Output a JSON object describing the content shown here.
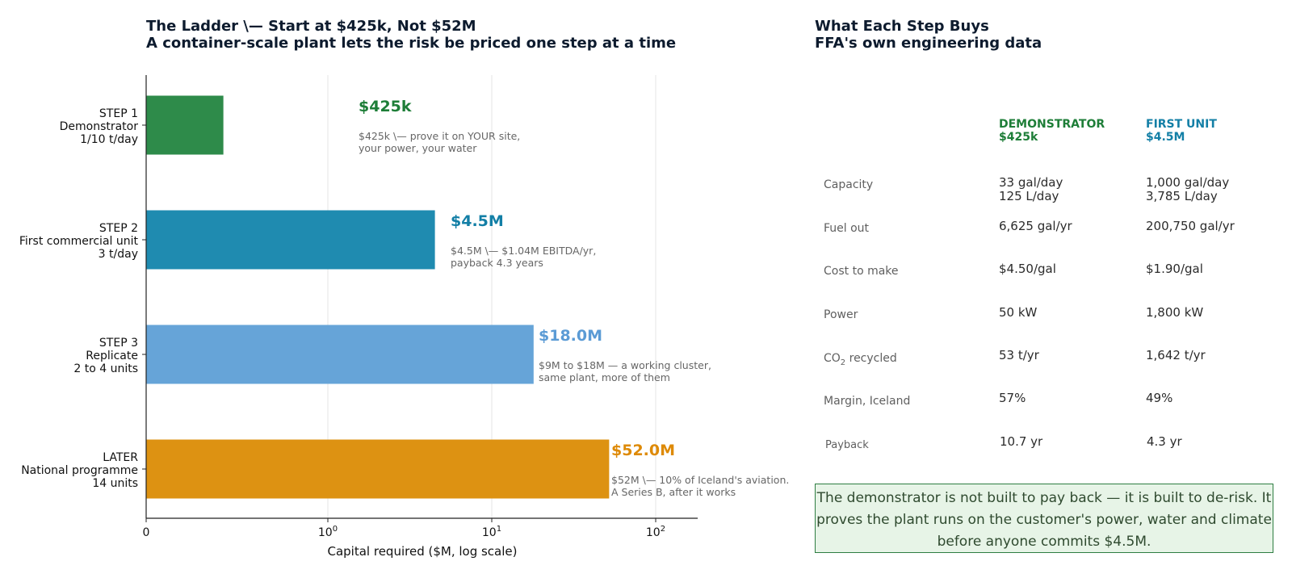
{
  "left_panel": {
    "title_line1": "The Ladder \\— Start at $425k, Not $52M",
    "title_line2": "A container-scale plant lets the risk be priced one step at a time"
  },
  "right_panel": {
    "title_line1": "What Each Step Buys",
    "title_line2": "FFA's own engineering data"
  },
  "chart_data": {
    "type": "bar",
    "orientation": "horizontal",
    "x_scale": "log",
    "xlabel": "Capital required ($M, log scale)",
    "xticks": [
      "0",
      "10^0",
      "10^1",
      "10^2"
    ],
    "grid": "vertical gridlines",
    "categories": [
      [
        "STEP 1",
        "Demonstrator",
        "1/10 t/day"
      ],
      [
        "STEP 2",
        "First commercial unit",
        "3 t/day"
      ],
      [
        "STEP 3",
        "Replicate",
        "2 to 4 units"
      ],
      [
        "LATER",
        "National programme",
        "14 units"
      ]
    ],
    "values": [
      0.425,
      4.5,
      18.0,
      52.0
    ],
    "colors": [
      "#2e8b4a",
      "#1f8bb0",
      "#66a4d8",
      "#dd9212"
    ],
    "value_labels": [
      "$425k",
      "$4.5M",
      "$18.0M",
      "$52.0M"
    ],
    "value_label_colors": [
      "#1e7e38",
      "#137fa6",
      "#5b9bd5",
      "#de8a06"
    ],
    "annotations": [
      [
        "$425k \\— prove it on YOUR site,",
        "your power, your water"
      ],
      [
        "$4.5M \\— $1.04M EBITDA/yr,",
        "payback 4.3 years"
      ],
      [
        "$9M to $18M — a working cluster,",
        "same plant, more of them"
      ],
      [
        "$52M \\— 10% of Iceland's aviation.",
        "A Series B, after it works"
      ]
    ]
  },
  "table": {
    "col1_head": [
      "DEMONSTRATOR",
      "$425k"
    ],
    "col2_head": [
      "FIRST UNIT",
      "$4.5M"
    ],
    "col1_color": "#1e7e38",
    "col2_color": "#137fa6",
    "rows": [
      {
        "label": "Capacity",
        "label_sub": "",
        "label_after": "",
        "a": "33 gal/day\n125 L/day",
        "b": "1,000 gal/day\n3,785 L/day"
      },
      {
        "label": "Fuel out",
        "label_sub": "",
        "label_after": "",
        "a": "6,625 gal/yr",
        "b": "200,750 gal/yr"
      },
      {
        "label": "Cost to make",
        "label_sub": "",
        "label_after": "",
        "a": "$4.50/gal",
        "b": "$1.90/gal"
      },
      {
        "label": "Power",
        "label_sub": "",
        "label_after": "",
        "a": "50 kW",
        "b": "1,800 kW"
      },
      {
        "label": "CO",
        "label_sub": "2",
        "label_after": " recycled",
        "a": "53 t/yr",
        "b": "1,642 t/yr"
      },
      {
        "label": "Margin, Iceland",
        "label_sub": "",
        "label_after": "",
        "a": "57%",
        "b": "49%"
      },
      {
        "label": "Payback",
        "label_sub": "",
        "label_after": "",
        "a": "10.7 yr",
        "b": "4.3 yr"
      }
    ]
  },
  "callout": {
    "text": "The demonstrator is not built to pay back — it is built to de-risk. It proves the plant runs on the customer's power, water and climate before anyone commits $4.5M."
  }
}
